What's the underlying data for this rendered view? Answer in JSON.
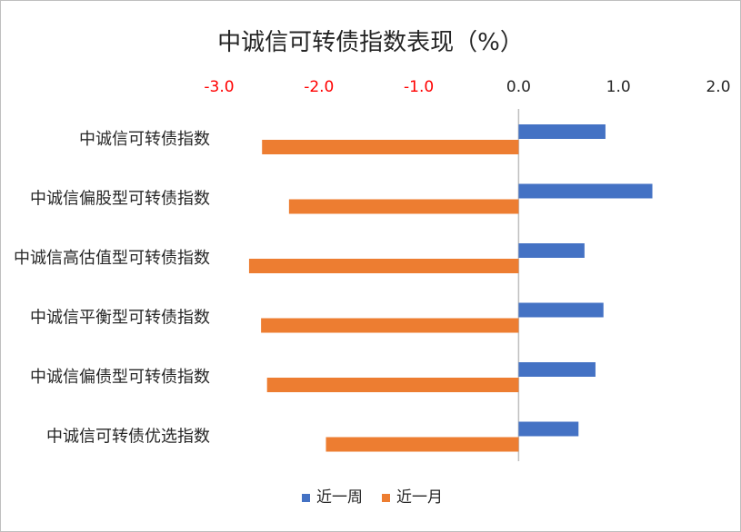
{
  "chart_data": {
    "type": "bar",
    "orientation": "horizontal",
    "title": "中诚信可转债指数表现（%）",
    "categories": [
      "中诚信可转债指数",
      "中诚信偏股型可转债指数",
      "中诚信高估值型可转债指数",
      "中诚信平衡型可转债指数",
      "中诚信偏债型可转债指数",
      "中诚信可转债优选指数"
    ],
    "series": [
      {
        "name": "近一周",
        "color": "#4472c4",
        "values": [
          0.87,
          1.34,
          0.66,
          0.85,
          0.77,
          0.6
        ]
      },
      {
        "name": "近一月",
        "color": "#ed7d31",
        "values": [
          -2.57,
          -2.3,
          -2.7,
          -2.58,
          -2.52,
          -1.93
        ]
      }
    ],
    "xlim": [
      -3.0,
      2.0
    ],
    "xticks": [
      -3.0,
      -2.0,
      -1.0,
      0.0,
      1.0,
      2.0
    ],
    "xtick_labels": [
      "-3.0",
      "-2.0",
      "-1.0",
      "0.0",
      "1.0",
      "2.0"
    ],
    "negative_tick_color": "#ff0000",
    "positive_tick_color": "#262626",
    "x_axis_position": "top",
    "grid": false,
    "legend_position": "bottom"
  }
}
